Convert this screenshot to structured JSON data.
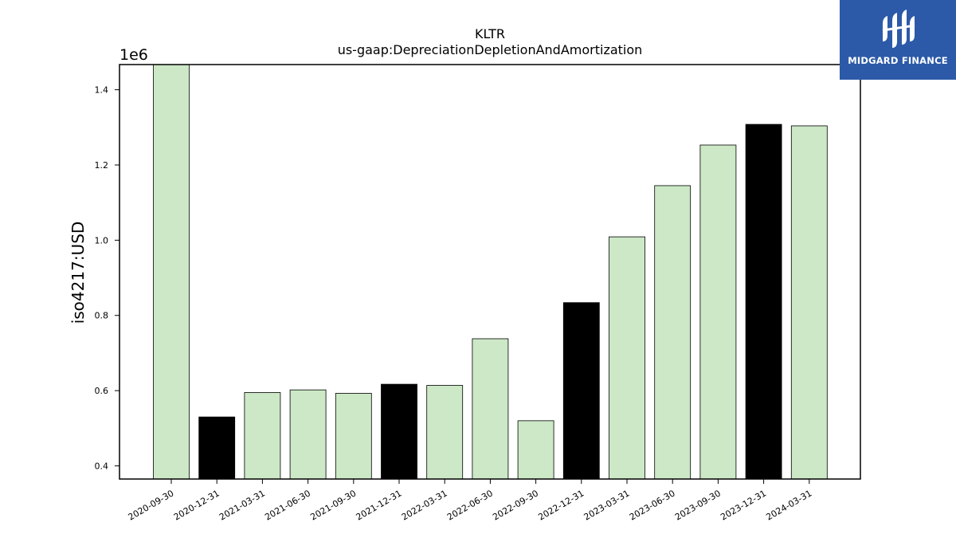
{
  "chart_data": {
    "type": "bar",
    "title": "KLTR",
    "subtitle": "us-gaap:DepreciationDepletionAndAmortization",
    "ylabel": "iso4217:USD",
    "xlabel": "",
    "y_offset_label": "1e6",
    "y_multiplier": 1000000,
    "ylim": [
      0.365,
      1.467
    ],
    "yticks": [
      "0.4",
      "0.6",
      "0.8",
      "1.0",
      "1.2",
      "1.4"
    ],
    "grid": false,
    "categories": [
      "2020-09-30",
      "2020-12-31",
      "2021-03-31",
      "2021-06-30",
      "2021-09-30",
      "2021-12-31",
      "2022-03-31",
      "2022-06-30",
      "2022-09-30",
      "2022-12-31",
      "2023-03-31",
      "2023-06-30",
      "2023-09-30",
      "2023-12-31",
      "2024-03-31"
    ],
    "values": [
      1467000,
      530000,
      595000,
      602000,
      593000,
      617000,
      614000,
      738000,
      520000,
      834000,
      1009000,
      1145000,
      1253000,
      1308000,
      1304000
    ],
    "bar_colors": [
      "#cce8c6",
      "#000000",
      "#cce8c6",
      "#cce8c6",
      "#cce8c6",
      "#000000",
      "#cce8c6",
      "#cce8c6",
      "#cce8c6",
      "#000000",
      "#cce8c6",
      "#cce8c6",
      "#cce8c6",
      "#000000",
      "#cce8c6"
    ]
  },
  "logo": {
    "text": "MIDGARD FINANCE",
    "icon": "midgard-logo-icon",
    "color": "#2c5aa8"
  }
}
